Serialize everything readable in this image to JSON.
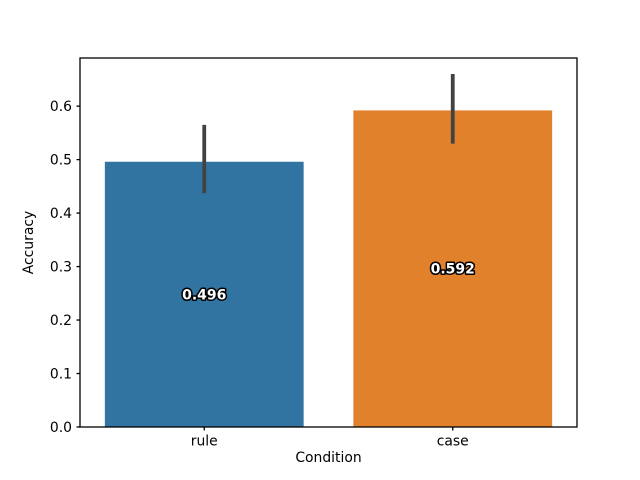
{
  "figure": {
    "background": "#ffffff",
    "frame_color": "#000000"
  },
  "chart_data": {
    "type": "bar",
    "title": "",
    "xlabel": "Condition",
    "ylabel": "Accuracy",
    "categories": [
      "rule",
      "case"
    ],
    "values": [
      0.496,
      0.592
    ],
    "bar_labels": [
      "0.496",
      "0.592"
    ],
    "bar_colors": [
      "#3274a1",
      "#e1812c"
    ],
    "error_bars": [
      {
        "low": 0.437,
        "high": 0.565
      },
      {
        "low": 0.53,
        "high": 0.66
      }
    ],
    "error_bar_color": "#424242",
    "ylim": [
      0,
      0.69
    ],
    "yticks": [
      0.0,
      0.1,
      0.2,
      0.3,
      0.4,
      0.5,
      0.6
    ],
    "ytick_labels": [
      "0.0",
      "0.1",
      "0.2",
      "0.3",
      "0.4",
      "0.5",
      "0.6"
    ],
    "grid": false,
    "legend": null,
    "bar_label_position": "middle-of-bar"
  }
}
